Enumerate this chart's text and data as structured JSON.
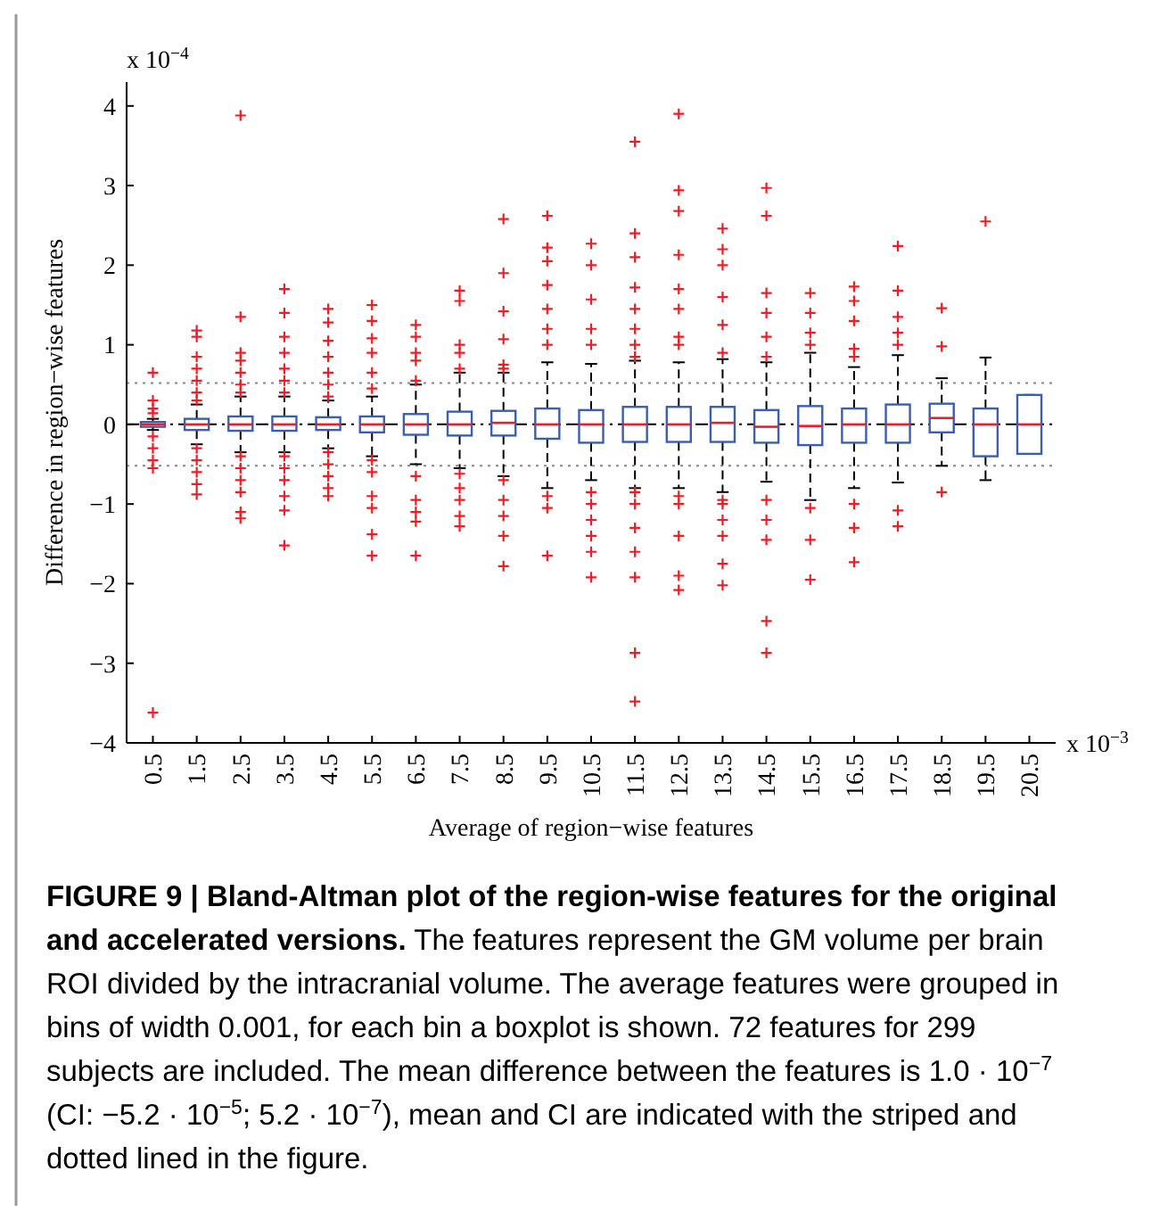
{
  "chart_data": {
    "type": "box",
    "title": "FIGURE 9 | Bland-Altman plot of the region-wise features for the original and accelerated versions.",
    "xlabel": "Average of region−wise features",
    "ylabel": "Difference in region−wise features",
    "annotations": [
      "x 10$^{−4}$",
      "x 10$^{−3}$",
      "The features represent the GM volume per brain ROI divided by the intracranial volume. The average features were grouped in bins of width 0.001, for each bin a boxplot is shown. 72 features for 299 subjects are included. The mean difference between the features is 1.0 · 10$^{−7}$ (CI: −5.2 · 10$^{−5}$; 5.2 · 10$^{−7}$), mean and CI are indicated with the striped and dotted lined in the figure."
    ],
    "categories": [
      "0.5",
      "1.5",
      "2.5",
      "3.5",
      "4.5",
      "5.5",
      "6.5",
      "7.5",
      "8.5",
      "9.5",
      "10.5",
      "11.5",
      "12.5",
      "13.5",
      "14.5",
      "15.5",
      "16.5",
      "17.5",
      "18.5",
      "19.5",
      "20.5"
    ],
    "color": "#3a5fb0",
    "ylim": [
      -4,
      4.3
    ],
    "yticks": [
      -4,
      -3,
      -2,
      -1,
      0,
      1,
      2,
      3,
      4
    ],
    "grid": false,
    "marker": "cross",
    "ref_lines": [
      {
        "axis": "y",
        "value": 0.001,
        "line_style": "dashdot",
        "color": "#000000"
      },
      {
        "axis": "y",
        "value": 0.52,
        "line_style": "dotted",
        "color": "#888888"
      },
      {
        "axis": "y",
        "value": -0.52,
        "line_style": "dotted",
        "color": "#888888"
      }
    ],
    "boxes": [
      {
        "low": -0.07,
        "q1": -0.03,
        "median": 0,
        "q3": 0.03,
        "high": 0.07,
        "outliers": [
          0.65,
          0.3,
          0.2,
          0.14,
          -0.15,
          -0.3,
          -0.45,
          -0.55,
          -3.62
        ]
      },
      {
        "low": -0.25,
        "q1": -0.07,
        "median": 0,
        "q3": 0.07,
        "high": 0.25,
        "outliers": [
          1.18,
          1.1,
          0.85,
          0.7,
          0.55,
          0.4,
          0.3,
          -0.3,
          -0.45,
          -0.6,
          -0.75,
          -0.88
        ]
      },
      {
        "low": -0.35,
        "q1": -0.08,
        "median": 0,
        "q3": 0.1,
        "high": 0.35,
        "outliers": [
          3.88,
          1.35,
          0.9,
          0.8,
          0.65,
          0.5,
          0.4,
          -0.4,
          -0.55,
          -0.7,
          -0.85,
          -1.1,
          -1.18
        ]
      },
      {
        "low": -0.35,
        "q1": -0.08,
        "median": 0,
        "q3": 0.1,
        "high": 0.35,
        "outliers": [
          1.7,
          1.4,
          1.1,
          0.9,
          0.7,
          0.55,
          0.4,
          -0.4,
          -0.55,
          -0.7,
          -0.9,
          -1.08,
          -1.52
        ]
      },
      {
        "low": -0.3,
        "q1": -0.07,
        "median": 0,
        "q3": 0.09,
        "high": 0.3,
        "outliers": [
          1.45,
          1.28,
          1.05,
          0.85,
          0.65,
          0.5,
          0.35,
          -0.35,
          -0.5,
          -0.65,
          -0.8,
          -0.9
        ]
      },
      {
        "low": -0.4,
        "q1": -0.1,
        "median": 0,
        "q3": 0.1,
        "high": 0.35,
        "outliers": [
          1.5,
          1.3,
          1.08,
          0.9,
          0.65,
          0.45,
          -0.45,
          -0.6,
          -0.9,
          -1.05,
          -1.38,
          -1.65
        ]
      },
      {
        "low": -0.5,
        "q1": -0.13,
        "median": 0,
        "q3": 0.13,
        "high": 0.5,
        "outliers": [
          1.25,
          1.1,
          0.9,
          0.8,
          0.55,
          -0.65,
          -0.95,
          -1.1,
          -1.22,
          -1.65
        ]
      },
      {
        "low": -0.55,
        "q1": -0.14,
        "median": 0,
        "q3": 0.16,
        "high": 0.65,
        "outliers": [
          1.68,
          1.55,
          1.0,
          0.9,
          0.7,
          -0.62,
          -0.8,
          -0.95,
          -1.15,
          -1.28
        ]
      },
      {
        "low": -0.65,
        "q1": -0.14,
        "median": 0.02,
        "q3": 0.17,
        "high": 0.65,
        "outliers": [
          2.58,
          1.9,
          1.42,
          1.07,
          0.75,
          0.7,
          -0.7,
          -0.95,
          -1.15,
          -1.4,
          -1.78
        ]
      },
      {
        "low": -0.8,
        "q1": -0.18,
        "median": 0,
        "q3": 0.2,
        "high": 0.78,
        "outliers": [
          2.62,
          2.22,
          2.05,
          1.75,
          1.45,
          1.2,
          1.0,
          -0.9,
          -1.05,
          -1.65
        ]
      },
      {
        "low": -0.7,
        "q1": -0.23,
        "median": 0,
        "q3": 0.18,
        "high": 0.76,
        "outliers": [
          2.27,
          2.0,
          1.57,
          1.2,
          1.0,
          -0.85,
          -1.0,
          -1.2,
          -1.4,
          -1.6,
          -1.92
        ]
      },
      {
        "low": -0.8,
        "q1": -0.22,
        "median": 0,
        "q3": 0.22,
        "high": 0.8,
        "outliers": [
          3.55,
          2.4,
          2.1,
          1.72,
          1.45,
          1.2,
          1.0,
          0.85,
          -0.85,
          -1.0,
          -1.3,
          -1.6,
          -1.92,
          -2.87,
          -3.48
        ]
      },
      {
        "low": -0.8,
        "q1": -0.22,
        "median": 0,
        "q3": 0.22,
        "high": 0.78,
        "outliers": [
          3.9,
          2.94,
          2.68,
          2.13,
          1.7,
          1.45,
          1.1,
          1.0,
          -0.9,
          -1.0,
          -1.4,
          -1.9,
          -2.08
        ]
      },
      {
        "low": -0.85,
        "q1": -0.22,
        "median": 0.02,
        "q3": 0.22,
        "high": 0.82,
        "outliers": [
          2.46,
          2.2,
          2.0,
          1.6,
          1.25,
          0.9,
          -0.95,
          -1.0,
          -1.2,
          -1.4,
          -1.75,
          -2.02
        ]
      },
      {
        "low": -0.72,
        "q1": -0.23,
        "median": -0.03,
        "q3": 0.18,
        "high": 0.78,
        "outliers": [
          2.97,
          2.62,
          1.65,
          1.4,
          1.1,
          0.85,
          -0.95,
          -1.2,
          -1.45,
          -2.47,
          -2.87
        ]
      },
      {
        "low": -0.95,
        "q1": -0.26,
        "median": -0.02,
        "q3": 0.23,
        "high": 0.9,
        "outliers": [
          1.65,
          1.4,
          1.15,
          1.0,
          -1.05,
          -1.45,
          -1.95
        ]
      },
      {
        "low": -0.8,
        "q1": -0.23,
        "median": 0,
        "q3": 0.2,
        "high": 0.72,
        "outliers": [
          1.73,
          1.55,
          1.3,
          0.95,
          0.85,
          -1.0,
          -1.3,
          -1.73
        ]
      },
      {
        "low": -0.73,
        "q1": -0.23,
        "median": 0,
        "q3": 0.25,
        "high": 0.87,
        "outliers": [
          2.24,
          1.68,
          1.35,
          1.15,
          1.0,
          -1.08,
          -1.28
        ]
      },
      {
        "low": -0.52,
        "q1": -0.1,
        "median": 0.08,
        "q3": 0.26,
        "high": 0.58,
        "outliers": [
          1.46,
          0.98,
          -0.85
        ]
      },
      {
        "low": -0.7,
        "q1": -0.4,
        "median": 0,
        "q3": 0.2,
        "high": 0.84,
        "outliers": [
          2.55
        ]
      },
      {
        "low": -0.37,
        "q1": -0.37,
        "median": 0,
        "q3": 0.37,
        "high": 0.37
      }
    ]
  }
}
